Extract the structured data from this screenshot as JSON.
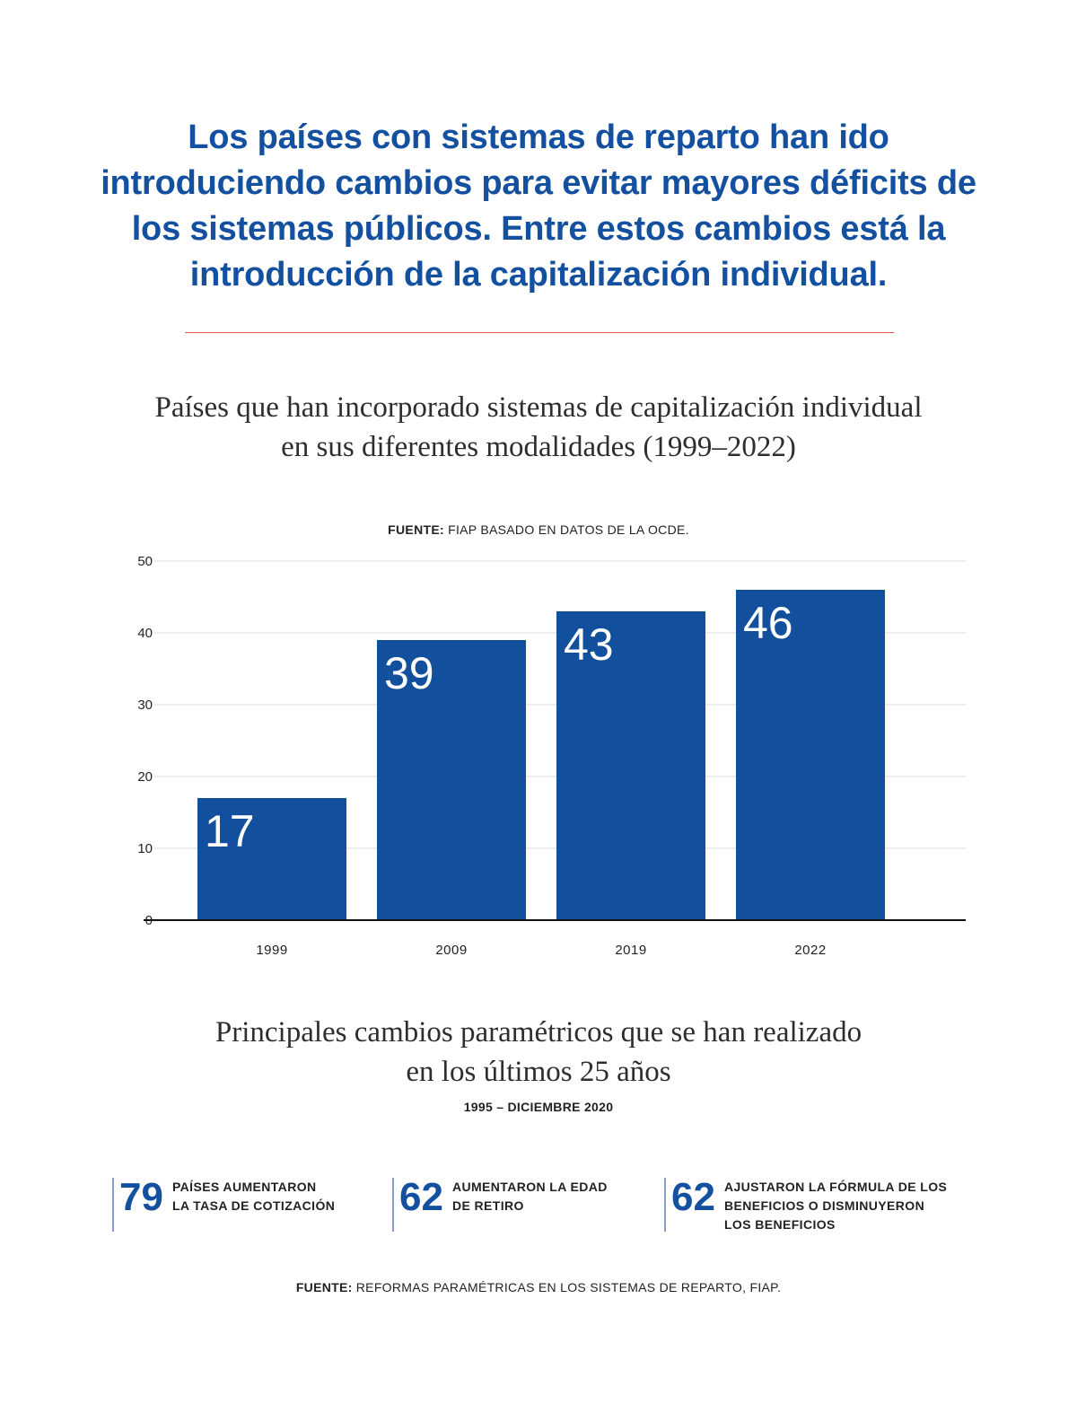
{
  "headline": "Los países con sistemas de reparto han ido introduciendo cambios para evitar mayores déficits de los sistemas públicos. Entre estos cambios está la introducción de la capitalización individual.",
  "chart_title_line1": "Países que han incorporado sistemas de capitalización individual",
  "chart_title_line2": "en sus diferentes modalidades (1999–2022)",
  "chart_source_label": "FUENTE:",
  "chart_source_text": " FIAP BASADO EN DATOS DE LA OCDE.",
  "chart_data": {
    "type": "bar",
    "categories": [
      "1999",
      "2009",
      "2019",
      "2022"
    ],
    "values": [
      17,
      39,
      43,
      46
    ],
    "data_labels": [
      "17",
      "39",
      "43",
      "46"
    ],
    "y_ticks": [
      "0",
      "10",
      "20",
      "30",
      "40",
      "50"
    ],
    "ylim": [
      0,
      50
    ],
    "grid": true,
    "bar_color": "#12509e",
    "title": "Países que han incorporado sistemas de capitalización individual en sus diferentes modalidades (1999–2022)",
    "xlabel": "",
    "ylabel": ""
  },
  "changes_title_line1": "Principales cambios paramétricos que se han realizado",
  "changes_title_line2": "en los últimos 25 años",
  "period": "1995 – DICIEMBRE 2020",
  "stats": [
    {
      "number": "79",
      "line1": "PAÍSES AUMENTARON",
      "line2": "LA TASA DE COTIZACIÓN",
      "line3": ""
    },
    {
      "number": "62",
      "line1": "AUMENTARON LA EDAD",
      "line2": "DE RETIRO",
      "line3": ""
    },
    {
      "number": "62",
      "line1": "AJUSTARON LA FÓRMULA DE LOS",
      "line2": "BENEFICIOS O DISMINUYERON",
      "line3": "LOS BENEFICIOS"
    }
  ],
  "footer_source_label": "FUENTE:",
  "footer_source_text": " REFORMAS PARAMÉTRICAS EN LOS SISTEMAS DE REPARTO, FIAP.",
  "colors": {
    "accent": "#1350a0",
    "divider": "#e8544a",
    "bar": "#12509e"
  }
}
